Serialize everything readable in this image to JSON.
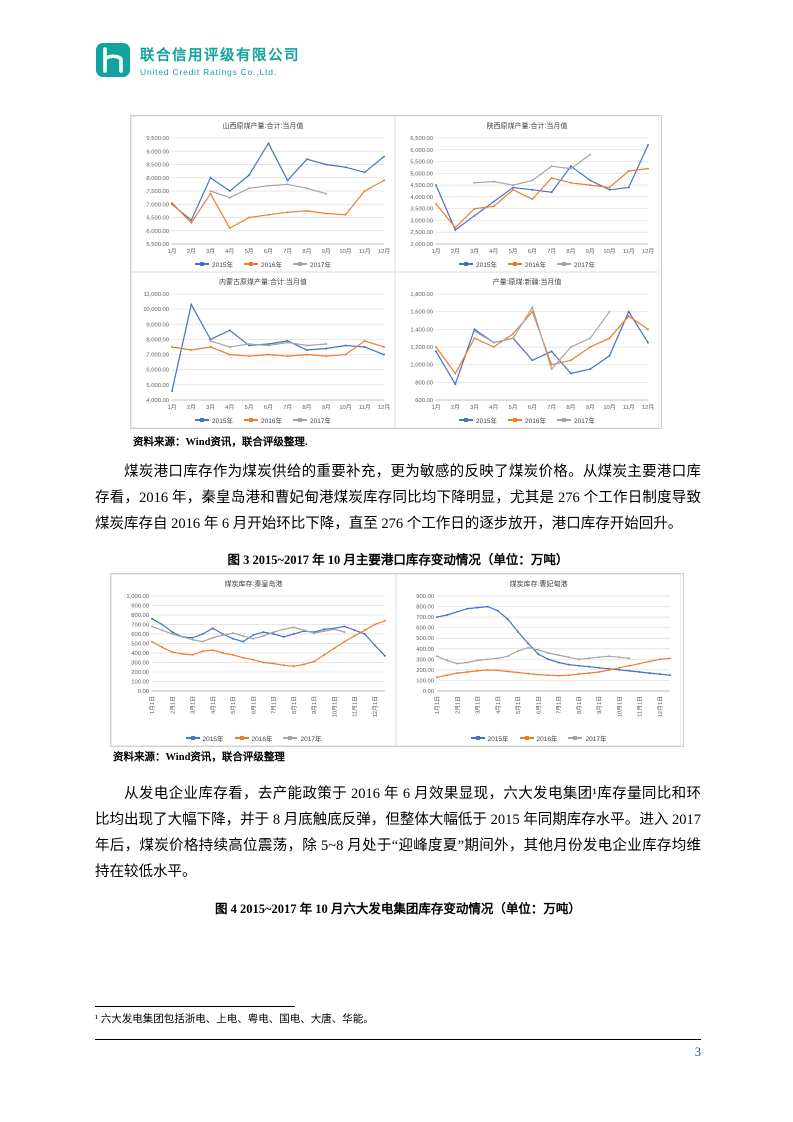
{
  "header": {
    "company_cn": "联合信用评级有限公司",
    "company_en": "United Credit Ratings Co.,Ltd."
  },
  "body": {
    "source_note_top": "资料来源：Wind资讯，联合评级整理.",
    "paragraph_1": "煤炭港口库存作为煤炭供给的重要补充，更为敏感的反映了煤炭价格。从煤炭主要港口库存看，2016 年，秦皇岛港和曹妃甸港煤炭库存同比均下降明显，尤其是 276 个工作日制度导致煤炭库存自 2016 年 6 月开始环比下降，直至 276 个工作日的逐步放开，港口库存开始回升。",
    "figure3_caption": "图 3  2015~2017 年 10 月主要港口库存变动情况（单位：万吨）",
    "source_note_mid": "资料来源：Wind资讯，联合评级整理",
    "paragraph_2": "从发电企业库存看，去产能政策于 2016 年 6 月效果显现，六大发电集团¹库存量同比和环比均出现了大幅下降，并于 8 月底触底反弹，但整体大幅低于 2015 年同期库存水平。进入 2017 年后，煤炭价格持续高位震荡，除 5~8 月处于“迎峰度夏”期间外，其他月份发电企业库存均维持在较低水平。",
    "figure4_caption": "图 4  2015~2017 年 10 月六大发电集团库存变动情况（单位：万吨）",
    "footnote": "¹ 六大发电集团包括浙电、上电、粤电、国电、大唐、华能。"
  },
  "footer": {
    "page_number": "3"
  },
  "colors": {
    "y2015": "#4472C4",
    "y2016": "#ED7D31",
    "y2017": "#A5A5A5",
    "brand_teal": "#12a39c"
  },
  "chart_data": [
    {
      "type": "line",
      "title": "山西原煤产量:合计:当月值",
      "categories": [
        "1月",
        "2月",
        "3月",
        "4月",
        "5月",
        "6月",
        "7月",
        "8月",
        "9月",
        "10月",
        "11月",
        "12月"
      ],
      "ylim": [
        5500,
        9500
      ],
      "ystep": 500,
      "grid": true,
      "legend_position": "bottom",
      "series": [
        {
          "name": "2015年",
          "color": "#4472C4",
          "values": [
            7000,
            6400,
            8000,
            7500,
            8100,
            9300,
            7900,
            8700,
            8500,
            8400,
            8200,
            8800
          ]
        },
        {
          "name": "2016年",
          "color": "#ED7D31",
          "values": [
            7050,
            6300,
            7400,
            6100,
            6500,
            6600,
            6700,
            6750,
            6650,
            6600,
            7500,
            7900
          ]
        },
        {
          "name": "2017年",
          "color": "#A5A5A5",
          "values": [
            null,
            null,
            7500,
            7250,
            7600,
            7700,
            7750,
            7600,
            7400,
            null,
            null,
            null
          ]
        }
      ]
    },
    {
      "type": "line",
      "title": "陕西原煤产量:合计:当月值",
      "categories": [
        "1月",
        "2月",
        "3月",
        "4月",
        "5月",
        "6月",
        "7月",
        "8月",
        "9月",
        "10月",
        "11月",
        "12月"
      ],
      "ylim": [
        2000,
        6500
      ],
      "ystep": 500,
      "grid": true,
      "legend_position": "bottom",
      "series": [
        {
          "name": "2015年",
          "color": "#4472C4",
          "values": [
            4500,
            2600,
            3200,
            3800,
            4400,
            4300,
            4200,
            5300,
            4700,
            4300,
            4400,
            6200
          ]
        },
        {
          "name": "2016年",
          "color": "#ED7D31",
          "values": [
            3700,
            2700,
            3500,
            3600,
            4300,
            3900,
            4800,
            4600,
            4500,
            4400,
            5100,
            5200
          ]
        },
        {
          "name": "2017年",
          "color": "#A5A5A5",
          "values": [
            null,
            null,
            4600,
            4650,
            4500,
            4700,
            5300,
            5200,
            5800,
            null,
            null,
            null
          ]
        }
      ]
    },
    {
      "type": "line",
      "title": "内蒙古原煤产量:合计:当月值",
      "categories": [
        "1月",
        "2月",
        "3月",
        "4月",
        "5月",
        "6月",
        "7月",
        "8月",
        "9月",
        "10月",
        "11月",
        "12月"
      ],
      "ylim": [
        4000,
        11000
      ],
      "ystep": 1000,
      "grid": true,
      "legend_position": "bottom",
      "series": [
        {
          "name": "2015年",
          "color": "#4472C4",
          "values": [
            4600,
            10300,
            8000,
            8600,
            7600,
            7700,
            7900,
            7300,
            7400,
            7600,
            7500,
            7000
          ]
        },
        {
          "name": "2016年",
          "color": "#ED7D31",
          "values": [
            7500,
            7300,
            7500,
            7000,
            6900,
            7000,
            6900,
            7000,
            6900,
            7000,
            7900,
            7500
          ]
        },
        {
          "name": "2017年",
          "color": "#A5A5A5",
          "values": [
            null,
            null,
            7900,
            7500,
            7700,
            7600,
            7800,
            7600,
            7700,
            null,
            null,
            null
          ]
        }
      ]
    },
    {
      "type": "line",
      "title": "产量:原煤:新疆:当月值",
      "categories": [
        "1月",
        "2月",
        "3月",
        "4月",
        "5月",
        "6月",
        "7月",
        "8月",
        "9月",
        "10月",
        "11月",
        "12月"
      ],
      "ylim": [
        600,
        1800
      ],
      "ystep": 200,
      "grid": true,
      "legend_position": "bottom",
      "series": [
        {
          "name": "2015年",
          "color": "#4472C4",
          "values": [
            1150,
            780,
            1400,
            1250,
            1300,
            1050,
            1150,
            900,
            950,
            1100,
            1600,
            1250
          ]
        },
        {
          "name": "2016年",
          "color": "#ED7D31",
          "values": [
            1200,
            900,
            1300,
            1200,
            1350,
            1600,
            1000,
            1050,
            1200,
            1300,
            1550,
            1400
          ]
        },
        {
          "name": "2017年",
          "color": "#A5A5A5",
          "values": [
            null,
            null,
            1380,
            1250,
            1300,
            1650,
            950,
            1200,
            1300,
            1600,
            null,
            null
          ]
        }
      ]
    },
    {
      "type": "line",
      "title": "煤炭库存:秦皇岛港",
      "categories": [
        "1月1日",
        "",
        "2月1日",
        "",
        "3月1日",
        "",
        "4月1日",
        "",
        "5月1日",
        "",
        "6月1日",
        "",
        "7月1日",
        "",
        "8月1日",
        "",
        "9月1日",
        "",
        "10月1日",
        "",
        "11月1日",
        "",
        "12月1日",
        ""
      ],
      "ylim": [
        0,
        1000
      ],
      "ystep": 100,
      "grid": true,
      "legend_position": "bottom",
      "series": [
        {
          "name": "2015年",
          "color": "#4472C4",
          "values": [
            760,
            700,
            620,
            570,
            560,
            600,
            660,
            600,
            550,
            520,
            590,
            620,
            600,
            570,
            600,
            630,
            620,
            650,
            660,
            680,
            640,
            600,
            480,
            370
          ]
        },
        {
          "name": "2016年",
          "color": "#ED7D31",
          "values": [
            520,
            460,
            410,
            390,
            380,
            420,
            430,
            400,
            380,
            350,
            330,
            300,
            290,
            270,
            260,
            280,
            310,
            380,
            450,
            520,
            580,
            640,
            700,
            740
          ]
        },
        {
          "name": "2017年",
          "color": "#A5A5A5",
          "values": [
            680,
            640,
            600,
            570,
            540,
            520,
            560,
            590,
            610,
            580,
            550,
            580,
            620,
            650,
            670,
            640,
            610,
            630,
            650,
            620,
            null,
            null,
            null,
            null
          ]
        }
      ]
    },
    {
      "type": "line",
      "title": "煤炭库存:曹妃甸港",
      "categories": [
        "1月1日",
        "",
        "2月1日",
        "",
        "3月1日",
        "",
        "4月1日",
        "",
        "5月1日",
        "",
        "6月1日",
        "",
        "7月1日",
        "",
        "8月1日",
        "",
        "9月1日",
        "",
        "10月1日",
        "",
        "11月1日",
        "",
        "12月1日",
        ""
      ],
      "ylim": [
        0,
        900
      ],
      "ystep": 100,
      "grid": true,
      "legend_position": "bottom",
      "series": [
        {
          "name": "2015年",
          "color": "#4472C4",
          "values": [
            700,
            720,
            750,
            780,
            790,
            800,
            760,
            680,
            560,
            450,
            350,
            300,
            270,
            250,
            240,
            230,
            220,
            210,
            200,
            190,
            180,
            170,
            160,
            150
          ]
        },
        {
          "name": "2016年",
          "color": "#ED7D31",
          "values": [
            130,
            150,
            170,
            180,
            190,
            200,
            195,
            185,
            175,
            165,
            155,
            150,
            145,
            150,
            160,
            170,
            180,
            200,
            220,
            240,
            260,
            280,
            300,
            310
          ]
        },
        {
          "name": "2017年",
          "color": "#A5A5A5",
          "values": [
            330,
            290,
            260,
            270,
            290,
            300,
            310,
            330,
            380,
            410,
            390,
            360,
            340,
            320,
            300,
            310,
            320,
            330,
            320,
            310,
            null,
            null,
            null,
            null
          ]
        }
      ]
    }
  ]
}
